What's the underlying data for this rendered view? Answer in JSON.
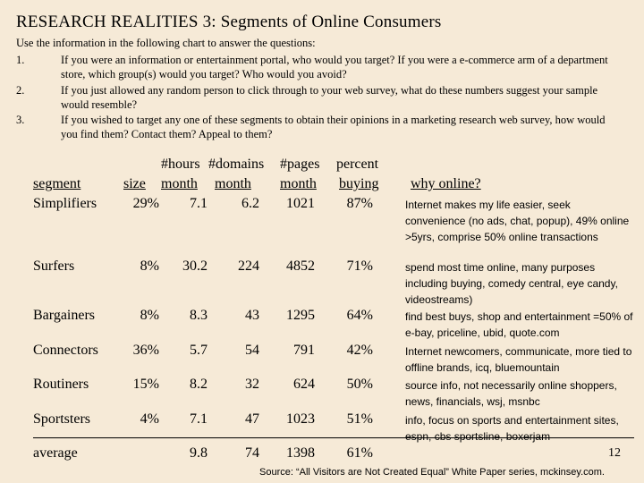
{
  "title": "RESEARCH REALITIES 3: Segments of Online Consumers",
  "intro": "Use the information in the following chart to answer the questions:",
  "questions": [
    {
      "num": "1.",
      "text": "If you were an information or entertainment portal, who would you target? If you were a e-commerce arm of a department store, which group(s) would you target? Who would you avoid?"
    },
    {
      "num": "2.",
      "text": "If you just allowed any random person to click through to your web survey, what do these numbers suggest your sample would resemble?"
    },
    {
      "num": "3.",
      "text": "If you wished to target any one of these segments to obtain their opinions in a marketing research web survey, how would you find them? Contact them? Appeal to them?"
    }
  ],
  "table": {
    "headers_top": {
      "hours": "#hours",
      "domains": "#domains",
      "pages": "#pages",
      "percent": "percent"
    },
    "headers_bottom": {
      "segment": "segment",
      "size": "size",
      "month1": "month",
      "month2": "month",
      "month3": "month",
      "buying": "buying",
      "why": "why online?"
    },
    "rows": [
      {
        "segment": "Simplifiers",
        "size": "29%",
        "hours": "7.1",
        "domains": "6.2",
        "pages": "1021",
        "percent": "87%"
      },
      {
        "segment": "Surfers",
        "size": "8%",
        "hours": "30.2",
        "domains": "224",
        "pages": "4852",
        "percent": "71%"
      },
      {
        "segment": "Bargainers",
        "size": "8%",
        "hours": "8.3",
        "domains": "43",
        "pages": "1295",
        "percent": "64%"
      },
      {
        "segment": "Connectors",
        "size": "36%",
        "hours": "5.7",
        "domains": "54",
        "pages": "791",
        "percent": "42%"
      },
      {
        "segment": "Routiners",
        "size": "15%",
        "hours": "8.2",
        "domains": "32",
        "pages": "624",
        "percent": "50%"
      },
      {
        "segment": "Sportsters",
        "size": "4%",
        "hours": "7.1",
        "domains": "47",
        "pages": "1023",
        "percent": "51%"
      }
    ],
    "average": {
      "segment": "average",
      "size": "",
      "hours": "9.8",
      "domains": "74",
      "pages": "1398",
      "percent": "61%"
    },
    "why": [
      "Internet makes my life easier, seek convenience (no ads, chat, popup), 49% online >5yrs, comprise 50% online transactions",
      "spend most time online, many purposes including buying, comedy central, eye candy, videostreams)",
      "find best buys, shop and entertainment =50% of e-bay, priceline, ubid, quote.com",
      "Internet newcomers, communicate, more tied to offline brands, icq, bluemountain",
      "source info, not necessarily online shoppers, news, financials, wsj, msnbc",
      "info, focus on sports and entertainment sites, espn, cbs sportsline, boxerjam"
    ]
  },
  "page_number": "12",
  "source": "Source: “All Visitors are Not Created Equal” White Paper series, mckinsey.com."
}
